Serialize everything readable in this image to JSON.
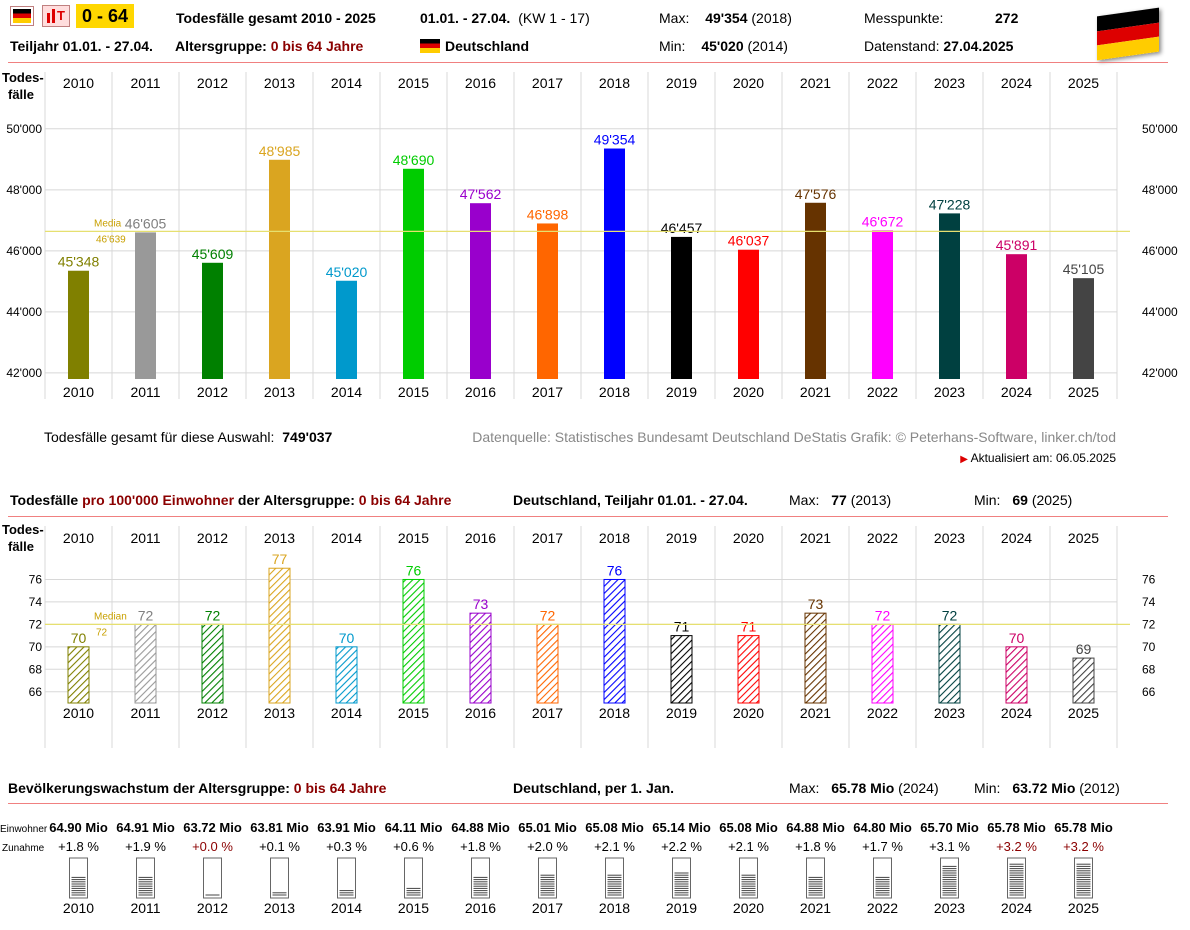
{
  "header": {
    "badge": "0 - 64",
    "title": "Todesfälle gesamt 2010 - 2025",
    "period": "01.01. - 27.04.",
    "kw": "(KW 1 - 17)",
    "max_label": "Max:",
    "max_value": "49'354",
    "max_year": "(2018)",
    "min_label": "Min:",
    "min_value": "45'020",
    "min_year": "(2014)",
    "messpunkte_label": "Messpunkte:",
    "messpunkte_value": "272",
    "teiljahr": "Teiljahr 01.01. - 27.04.",
    "altersgruppe_label": "Altersgruppe:",
    "altersgruppe_value": "0 bis 64 Jahre",
    "country": "Deutschland",
    "datenstand_label": "Datenstand:",
    "datenstand_value": "27.04.2025"
  },
  "middle": {
    "total_label": "Todesfälle gesamt für diese Auswahl:",
    "total_value": "749'037",
    "source": "Datenquelle: Statistisches Bundesamt Deutschland DeStatis  Grafik: © Peterhans-Software, linker.ch/tod",
    "updated": "Aktualisiert am: 06.05.2025"
  },
  "section2": {
    "title_a": "Todesfälle",
    "title_b": "pro 100'000 Einwohner",
    "title_c": "der Altersgruppe:",
    "title_d": "0 bis 64 Jahre",
    "region": "Deutschland, Teiljahr 01.01. - 27.04.",
    "max_label": "Max:",
    "max_value": "77",
    "max_year": "(2013)",
    "min_label": "Min:",
    "min_value": "69",
    "min_year": "(2025)"
  },
  "section3": {
    "title_a": "Bevölkerungswachstum der Altersgruppe:",
    "title_b": "0 bis 64 Jahre",
    "region": "Deutschland, per 1. Jan.",
    "max_label": "Max:",
    "max_value": "65.78 Mio",
    "max_year": "(2024)",
    "min_label": "Min:",
    "min_value": "63.72 Mio",
    "min_year": "(2012)",
    "row1_label": "Einwohner",
    "row2_label": "Zunahme"
  },
  "chart_data": [
    {
      "type": "bar",
      "ylabel": "Todes-\nfälle",
      "categories": [
        "2010",
        "2011",
        "2012",
        "2013",
        "2014",
        "2015",
        "2016",
        "2017",
        "2018",
        "2019",
        "2020",
        "2021",
        "2022",
        "2023",
        "2024",
        "2025"
      ],
      "values": [
        45348,
        46605,
        45609,
        48985,
        45020,
        48690,
        47562,
        46898,
        49354,
        46457,
        46037,
        47576,
        46672,
        47228,
        45891,
        45105
      ],
      "value_labels": [
        "45'348",
        "46'605",
        "45'609",
        "48'985",
        "45'020",
        "48'690",
        "47'562",
        "46'898",
        "49'354",
        "46'457",
        "46'037",
        "47'576",
        "46'672",
        "47'228",
        "45'891",
        "45'105"
      ],
      "colors": [
        "#808000",
        "#999999",
        "#008000",
        "#daa520",
        "#0099cc",
        "#00cc00",
        "#9900cc",
        "#ff6600",
        "#0000ff",
        "#000000",
        "#ff0000",
        "#663300",
        "#ff00ff",
        "#004040",
        "#cc0066",
        "#444444"
      ],
      "label_colors": [
        "#808000",
        "#808080",
        "#008000",
        "#daa520",
        "#0099cc",
        "#00cc00",
        "#9900cc",
        "#ff6600",
        "#0000ff",
        "#000000",
        "#ff0000",
        "#663300",
        "#ff00ff",
        "#004040",
        "#cc0066",
        "#444444"
      ],
      "ylim": [
        41800,
        50800
      ],
      "yticks": [
        42000,
        44000,
        46000,
        48000,
        50000
      ],
      "ytick_labels": [
        "42'000",
        "44'000",
        "46'000",
        "48'000",
        "50'000"
      ],
      "median": 46639,
      "median_text": "Media",
      "median_label": "46'639"
    },
    {
      "type": "bar",
      "ylabel": "Todes-\nfälle",
      "categories": [
        "2010",
        "2011",
        "2012",
        "2013",
        "2014",
        "2015",
        "2016",
        "2017",
        "2018",
        "2019",
        "2020",
        "2021",
        "2022",
        "2023",
        "2024",
        "2025"
      ],
      "values": [
        70,
        72,
        72,
        77,
        70,
        76,
        73,
        72,
        76,
        71,
        71,
        73,
        72,
        72,
        70,
        69
      ],
      "value_labels": [
        "70",
        "72",
        "72",
        "77",
        "70",
        "76",
        "73",
        "72",
        "76",
        "71",
        "71",
        "73",
        "72",
        "72",
        "70",
        "69"
      ],
      "colors": [
        "#808000",
        "#999999",
        "#008000",
        "#daa520",
        "#0099cc",
        "#00cc00",
        "#9900cc",
        "#ff6600",
        "#0000ff",
        "#000000",
        "#ff0000",
        "#663300",
        "#ff00ff",
        "#004040",
        "#cc0066",
        "#444444"
      ],
      "label_colors": [
        "#808000",
        "#808080",
        "#008000",
        "#daa520",
        "#0099cc",
        "#00cc00",
        "#9900cc",
        "#ff6600",
        "#0000ff",
        "#000000",
        "#ff0000",
        "#663300",
        "#ff00ff",
        "#004040",
        "#cc0066",
        "#444444"
      ],
      "ylim": [
        65,
        78
      ],
      "yticks": [
        66,
        68,
        70,
        72,
        74,
        76
      ],
      "ytick_labels": [
        "66",
        "68",
        "70",
        "72",
        "74",
        "76"
      ],
      "median": 72,
      "median_text": "Median",
      "median_label": "72"
    },
    {
      "type": "table",
      "categories": [
        "2010",
        "2011",
        "2012",
        "2013",
        "2014",
        "2015",
        "2016",
        "2017",
        "2018",
        "2019",
        "2020",
        "2021",
        "2022",
        "2023",
        "2024",
        "2025"
      ],
      "einwohner": [
        "64.90 Mio",
        "64.91 Mio",
        "63.72 Mio",
        "63.81 Mio",
        "63.91 Mio",
        "64.11 Mio",
        "64.88 Mio",
        "65.01 Mio",
        "65.08 Mio",
        "65.14 Mio",
        "65.08 Mio",
        "64.88 Mio",
        "64.80 Mio",
        "65.70 Mio",
        "65.78 Mio",
        "65.78 Mio"
      ],
      "einwohner_mio": [
        64.9,
        64.91,
        63.72,
        63.81,
        63.91,
        64.11,
        64.88,
        65.01,
        65.08,
        65.14,
        65.08,
        64.88,
        64.8,
        65.7,
        65.78,
        65.78
      ],
      "zunahme": [
        "+1.8 %",
        "+1.9 %",
        "+0.0 %",
        "+0.1 %",
        "+0.3 %",
        "+0.6 %",
        "+1.8 %",
        "+2.0 %",
        "+2.1 %",
        "+2.2 %",
        "+2.1 %",
        "+1.8 %",
        "+1.7 %",
        "+3.1 %",
        "+3.2 %",
        "+3.2 %"
      ],
      "zunahme_pct": [
        1.8,
        1.9,
        0.0,
        0.1,
        0.3,
        0.6,
        1.8,
        2.0,
        2.1,
        2.2,
        2.1,
        1.8,
        1.7,
        3.1,
        3.2,
        3.2
      ],
      "zunahme_colors": [
        "#000",
        "#000",
        "#8b0000",
        "#000",
        "#000",
        "#000",
        "#000",
        "#000",
        "#000",
        "#000",
        "#000",
        "#000",
        "#000",
        "#000",
        "#8b0000",
        "#8b0000"
      ]
    }
  ]
}
